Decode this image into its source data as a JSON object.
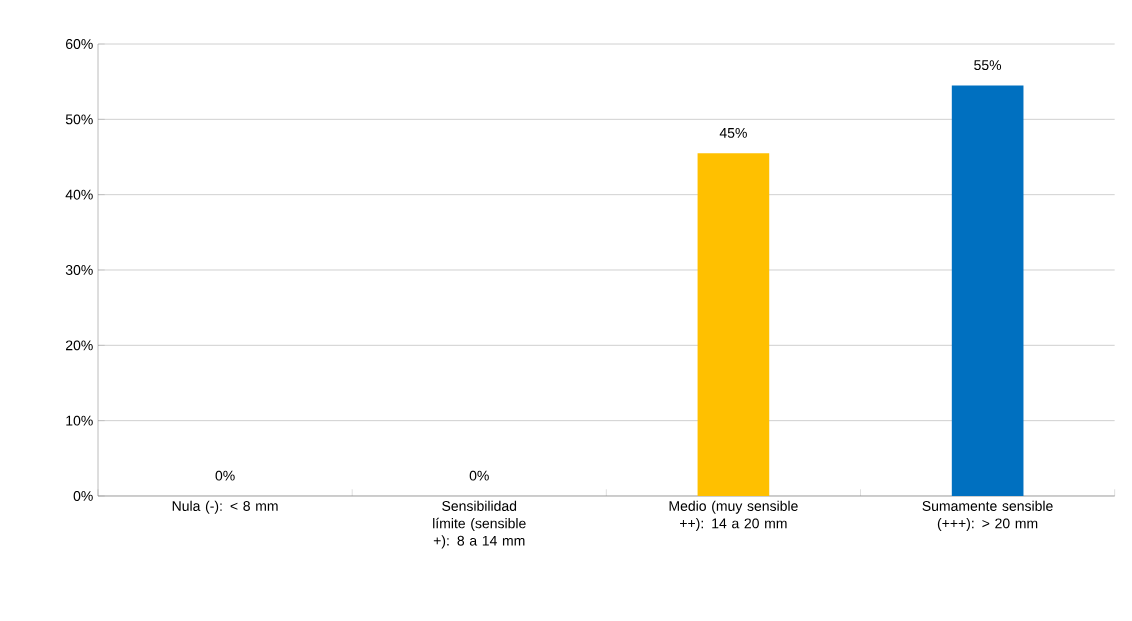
{
  "chart_data": {
    "type": "bar",
    "categories": [
      "Nula (-): < 8 mm",
      "Sensibilidad límite (sensible +): 8 a 14 mm",
      "Medio (muy sensible ++): 14 a 20 mm",
      "Sumamente sensible (+++): > 20 mm"
    ],
    "values": [
      0,
      0,
      45.5,
      54.5
    ],
    "value_labels": [
      "0%",
      "0%",
      "45%",
      "55%"
    ],
    "colors": [
      "#4472c4",
      "#4472c4",
      "#ffc000",
      "#0070c0"
    ],
    "ylim": [
      0,
      60
    ],
    "yticks": [
      {
        "value": 0,
        "label": "0%"
      },
      {
        "value": 10,
        "label": "10%"
      },
      {
        "value": 20,
        "label": "20%"
      },
      {
        "value": 30,
        "label": "30%"
      },
      {
        "value": 40,
        "label": "40%"
      },
      {
        "value": 50,
        "label": "50%"
      },
      {
        "value": 60,
        "label": "60%"
      }
    ],
    "grid": "y"
  }
}
